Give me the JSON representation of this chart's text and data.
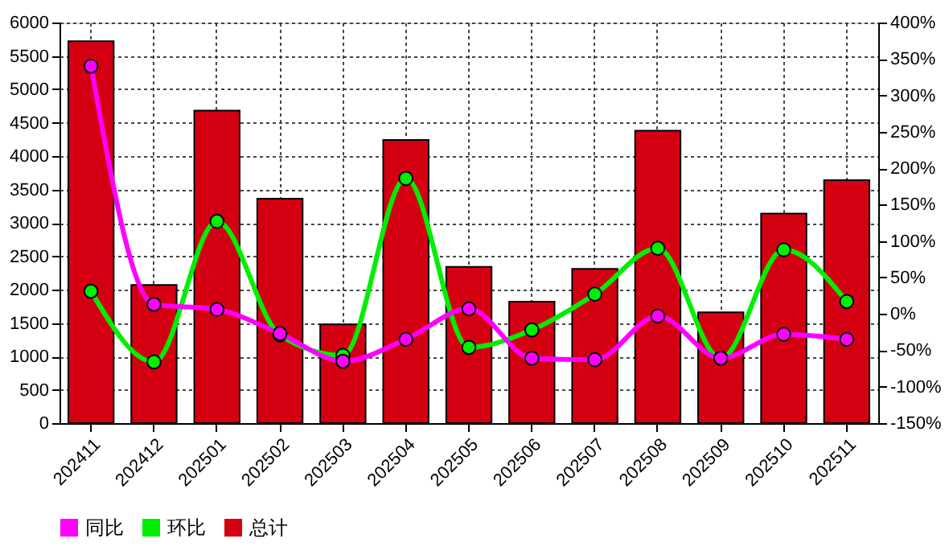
{
  "chart_data": {
    "type": "bar",
    "categories": [
      "202411",
      "202412",
      "202501",
      "202502",
      "202503",
      "202504",
      "202505",
      "202506",
      "202507",
      "202508",
      "202509",
      "202510",
      "202511"
    ],
    "series": [
      {
        "name": "同比",
        "type": "line",
        "axis": "y2",
        "color": "#ff00ff",
        "values": [
          340,
          13,
          6,
          -27,
          -65,
          -35,
          7,
          -61,
          -63,
          -3,
          -61,
          -28,
          -35
        ]
      },
      {
        "name": "环比",
        "type": "line",
        "axis": "y2",
        "color": "#00ee00",
        "values": [
          31,
          -66,
          127,
          -29,
          -57,
          186,
          -46,
          -22,
          27,
          90,
          -61,
          88,
          17
        ]
      },
      {
        "name": "总计",
        "color": "#d40012",
        "values": [
          5720,
          2070,
          4680,
          3360,
          1480,
          4240,
          2340,
          1820,
          2310,
          4380,
          1660,
          3140,
          3640
        ]
      }
    ],
    "ylim": [
      0,
      6000
    ],
    "yticks": [
      0,
      500,
      1000,
      1500,
      2000,
      2500,
      3000,
      3500,
      4000,
      4500,
      5000,
      5500,
      6000
    ],
    "y2lim": [
      -150,
      400
    ],
    "y2ticks": [
      {
        "value": -150,
        "label": "-150%"
      },
      {
        "value": -100,
        "label": "-100%"
      },
      {
        "value": -50,
        "label": "-50%"
      },
      {
        "value": 0,
        "label": "0%"
      },
      {
        "value": 50,
        "label": "50%"
      },
      {
        "value": 100,
        "label": "100%"
      },
      {
        "value": 150,
        "label": "150%"
      },
      {
        "value": 200,
        "label": "200%"
      },
      {
        "value": 250,
        "label": "250%"
      },
      {
        "value": 300,
        "label": "300%"
      },
      {
        "value": 350,
        "label": "350%"
      },
      {
        "value": 400,
        "label": "400%"
      }
    ],
    "grid": true,
    "legend": "bottom left",
    "marker": "circle",
    "line_style": "solid"
  }
}
